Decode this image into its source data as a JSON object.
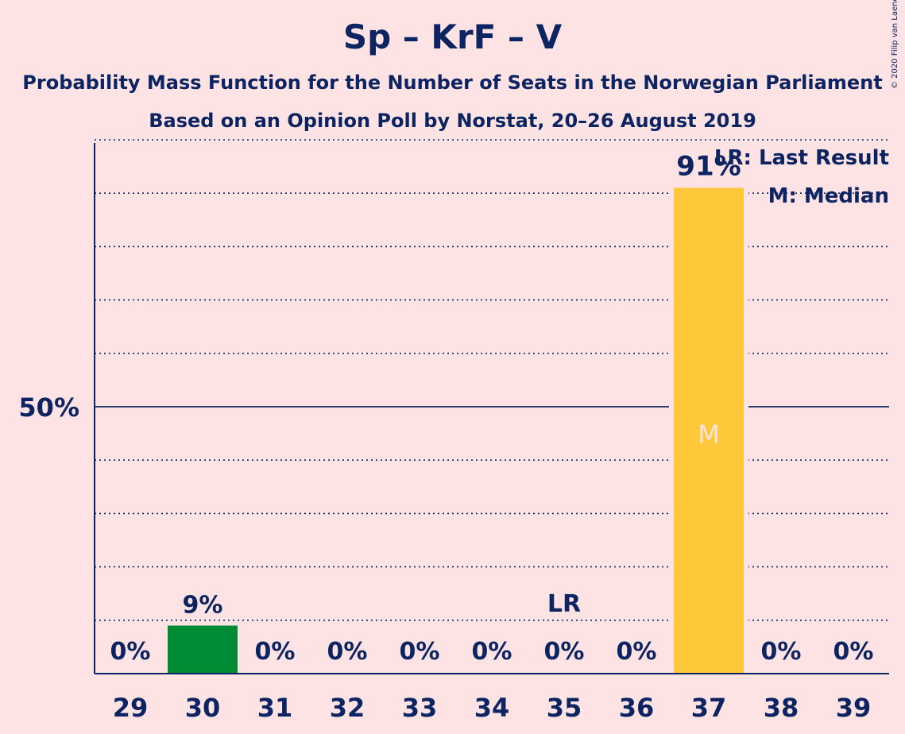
{
  "chart_data": {
    "type": "bar",
    "title": "Sp – KrF – V",
    "subtitle_1": "Probability Mass Function for the Number of Seats in the Norwegian Parliament",
    "subtitle_2": "Based on an Opinion Poll by Norstat, 20–26 August 2019",
    "copyright": "© 2020 Filip van Laenen",
    "categories": [
      "29",
      "30",
      "31",
      "32",
      "33",
      "34",
      "35",
      "36",
      "37",
      "38",
      "39"
    ],
    "values": [
      0,
      9,
      0,
      0,
      0,
      0,
      0,
      0,
      91,
      0,
      0
    ],
    "value_labels": [
      "0%",
      "9%",
      "0%",
      "0%",
      "0%",
      "0%",
      "0%",
      "0%",
      "91%",
      "0%",
      "0%"
    ],
    "ylim": [
      0,
      100
    ],
    "y_tick_label": "50%",
    "y_tick_value": 50,
    "grid": true,
    "last_result_category": "35",
    "last_result_marker": "LR",
    "median_category": "37",
    "median_marker": "M",
    "legend": {
      "placement": "top-right",
      "last_result": "LR: Last Result",
      "median": "M: Median"
    },
    "colors": {
      "background": "#FDE3E3",
      "text": "#0C2461",
      "bar_default": "#008C35",
      "bar_median": "#FFC83A",
      "median_marker": "#FDE3E3"
    }
  }
}
